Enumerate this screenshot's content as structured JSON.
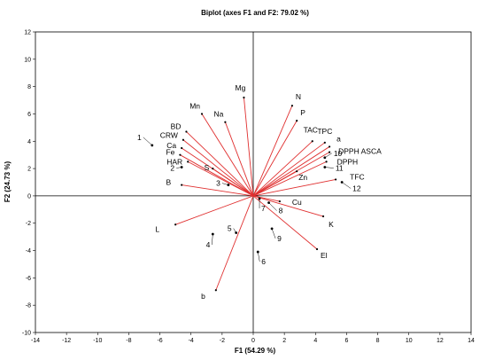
{
  "chart_data": {
    "type": "scatter",
    "title": "Biplot (axes F1 and F2: 79.02 %)",
    "xlabel": "F1 (54.29 %)",
    "ylabel": "F2 (24.73 %)",
    "xlim": [
      -14,
      14
    ],
    "ylim": [
      -10,
      12
    ],
    "xticks": [
      -14,
      -12,
      -10,
      -8,
      -6,
      -4,
      -2,
      0,
      2,
      4,
      6,
      8,
      10,
      12,
      14
    ],
    "yticks": [
      -10,
      -8,
      -6,
      -4,
      -2,
      0,
      2,
      4,
      6,
      8,
      10,
      12
    ],
    "grid": false,
    "variable_color": "#e03030",
    "observation_color": "#000000",
    "variables": [
      {
        "label": "Mg",
        "x": -0.6,
        "y": 7.2
      },
      {
        "label": "N",
        "x": 2.5,
        "y": 6.6
      },
      {
        "label": "P",
        "x": 2.8,
        "y": 5.5
      },
      {
        "label": "Mn",
        "x": -3.3,
        "y": 6.0
      },
      {
        "label": "Na",
        "x": -1.8,
        "y": 5.4
      },
      {
        "label": "BD",
        "x": -4.3,
        "y": 4.7
      },
      {
        "label": "CRW",
        "x": -4.5,
        "y": 4.1
      },
      {
        "label": "Ca",
        "x": -4.6,
        "y": 3.5
      },
      {
        "label": "Fe",
        "x": -4.7,
        "y": 3.0
      },
      {
        "label": "HAR",
        "x": -4.2,
        "y": 2.5
      },
      {
        "label": "S",
        "x": -2.6,
        "y": 2.0
      },
      {
        "label": "B",
        "x": -4.6,
        "y": 0.8
      },
      {
        "label": "TAC",
        "x": 3.8,
        "y": 4.0
      },
      {
        "label": "TPC",
        "x": 4.6,
        "y": 3.9
      },
      {
        "label": "a",
        "x": 4.9,
        "y": 3.6
      },
      {
        "label": "DPPH ASCA",
        "x": 4.9,
        "y": 3.2
      },
      {
        "label": "DPPH",
        "x": 4.7,
        "y": 2.5
      },
      {
        "label": "Zn",
        "x": 2.8,
        "y": 1.8
      },
      {
        "label": "TFC",
        "x": 5.3,
        "y": 1.2
      },
      {
        "label": "Cu",
        "x": 1.7,
        "y": -0.4
      },
      {
        "label": "K",
        "x": 4.5,
        "y": -1.5
      },
      {
        "label": "El",
        "x": 4.1,
        "y": -3.9
      },
      {
        "label": "L",
        "x": -5.0,
        "y": -2.1
      },
      {
        "label": "b",
        "x": -2.4,
        "y": -6.9
      }
    ],
    "observations": [
      {
        "label": "1",
        "x": -6.5,
        "y": 3.7
      },
      {
        "label": "2",
        "x": -4.6,
        "y": 2.1
      },
      {
        "label": "3",
        "x": -1.6,
        "y": 0.8
      },
      {
        "label": "4",
        "x": -2.6,
        "y": -2.8
      },
      {
        "label": "5",
        "x": -1.1,
        "y": -2.7
      },
      {
        "label": "6",
        "x": 0.3,
        "y": -4.1
      },
      {
        "label": "7",
        "x": 0.4,
        "y": -0.2
      },
      {
        "label": "8",
        "x": 1.0,
        "y": -0.5
      },
      {
        "label": "9",
        "x": 1.2,
        "y": -2.4
      },
      {
        "label": "10",
        "x": 4.6,
        "y": 2.8
      },
      {
        "label": "11",
        "x": 4.6,
        "y": 2.1
      },
      {
        "label": "12",
        "x": 5.7,
        "y": 1.0
      }
    ]
  }
}
